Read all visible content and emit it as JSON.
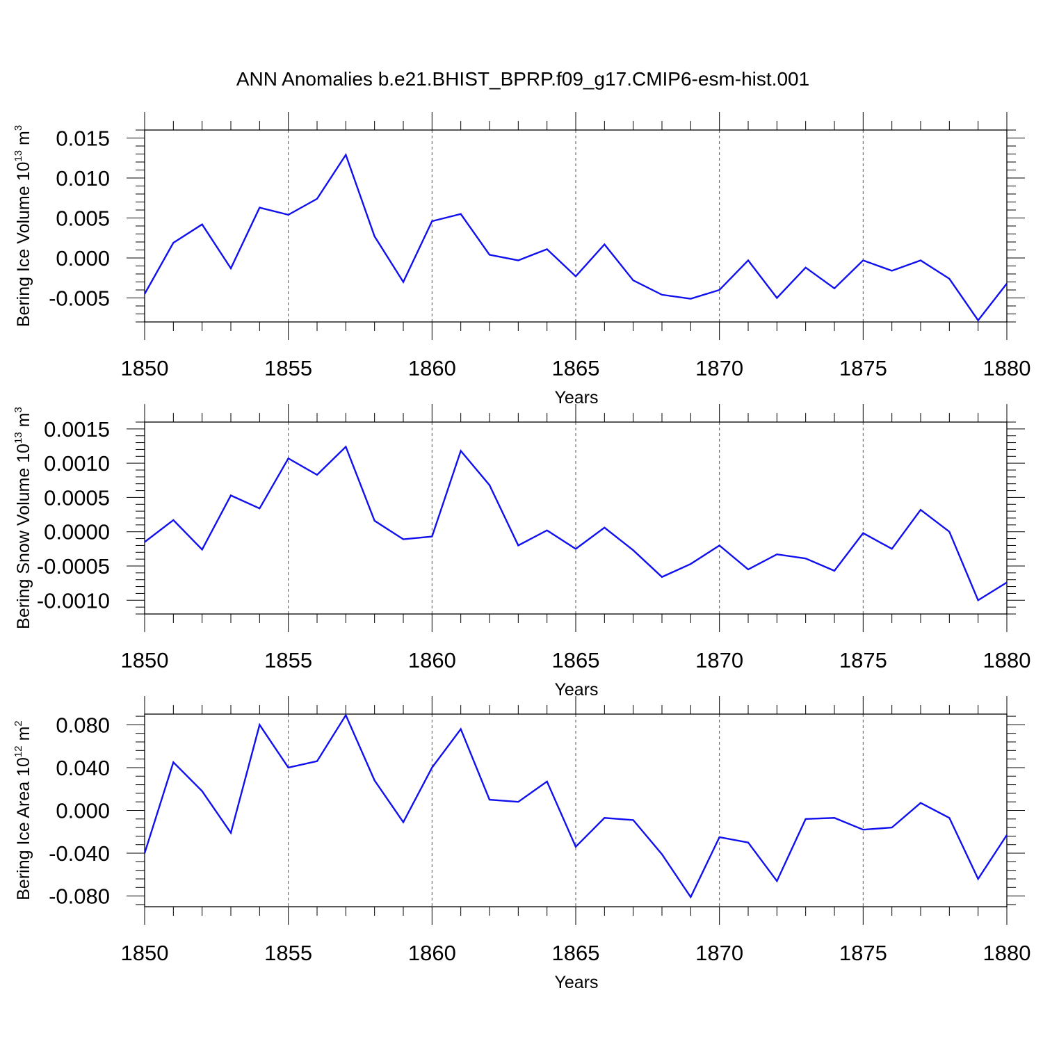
{
  "title": "ANN Anomalies b.e21.BHIST_BPRP.f09_g17.CMIP6-esm-hist.001",
  "colors": {
    "line": "#1010ee",
    "axis": "#000000",
    "grid": "#555555"
  },
  "chart_data": [
    {
      "type": "line",
      "ylabel_text": "Bering Ice Volume 10",
      "ylabel_exp": "13",
      "ylabel_unit": " m",
      "ylabel_unit_exp": "3",
      "xlabel": "Years",
      "xlim": [
        1850,
        1880
      ],
      "ylim": [
        -0.008,
        0.016
      ],
      "yticks": [
        -0.005,
        0.0,
        0.005,
        0.01,
        0.015
      ],
      "ytick_labels": [
        "-0.005",
        "0.000",
        "0.005",
        "0.010",
        "0.015"
      ],
      "xticks": [
        1850,
        1855,
        1860,
        1865,
        1870,
        1875,
        1880
      ],
      "xtick_labels": [
        "1850",
        "1855",
        "1860",
        "1865",
        "1870",
        "1875",
        "1880"
      ],
      "x": [
        1850,
        1851,
        1852,
        1853,
        1854,
        1855,
        1856,
        1857,
        1858,
        1859,
        1860,
        1861,
        1862,
        1863,
        1864,
        1865,
        1866,
        1867,
        1868,
        1869,
        1870,
        1871,
        1872,
        1873,
        1874,
        1875,
        1876,
        1877,
        1878,
        1879,
        1880
      ],
      "values": [
        -0.0045,
        0.0019,
        0.0042,
        -0.0013,
        0.0063,
        0.0054,
        0.0074,
        0.0129,
        0.0027,
        -0.003,
        0.0046,
        0.0055,
        0.0004,
        -0.0003,
        0.0011,
        -0.0023,
        0.0017,
        -0.0028,
        -0.0046,
        -0.0051,
        -0.004,
        -0.0003,
        -0.005,
        -0.0012,
        -0.0038,
        -0.0003,
        -0.0016,
        -0.0003,
        -0.0026,
        -0.0078,
        -0.0032
      ]
    },
    {
      "type": "line",
      "ylabel_text": "Bering Snow Volume 10",
      "ylabel_exp": "13",
      "ylabel_unit": " m",
      "ylabel_unit_exp": "3",
      "xlabel": "Years",
      "xlim": [
        1850,
        1880
      ],
      "ylim": [
        -0.0012,
        0.0016
      ],
      "yticks": [
        -0.001,
        -0.0005,
        0.0,
        0.0005,
        0.001,
        0.0015
      ],
      "ytick_labels": [
        "-0.0010",
        "-0.0005",
        "0.0000",
        "0.0005",
        "0.0010",
        "0.0015"
      ],
      "xticks": [
        1850,
        1855,
        1860,
        1865,
        1870,
        1875,
        1880
      ],
      "xtick_labels": [
        "1850",
        "1855",
        "1860",
        "1865",
        "1870",
        "1875",
        "1880"
      ],
      "x": [
        1850,
        1851,
        1852,
        1853,
        1854,
        1855,
        1856,
        1857,
        1858,
        1859,
        1860,
        1861,
        1862,
        1863,
        1864,
        1865,
        1866,
        1867,
        1868,
        1869,
        1870,
        1871,
        1872,
        1873,
        1874,
        1875,
        1876,
        1877,
        1878,
        1879,
        1880
      ],
      "values": [
        -0.00015,
        0.00017,
        -0.00026,
        0.00053,
        0.00034,
        0.00107,
        0.00083,
        0.00124,
        0.00016,
        -0.00011,
        -7e-05,
        0.00118,
        0.00068,
        -0.0002,
        2e-05,
        -0.00025,
        6e-05,
        -0.00027,
        -0.00066,
        -0.00047,
        -0.0002,
        -0.00055,
        -0.00033,
        -0.00039,
        -0.00057,
        -2e-05,
        -0.00025,
        0.00032,
        0.0,
        -0.001,
        -0.00074
      ]
    },
    {
      "type": "line",
      "ylabel_text": "Bering Ice Area 10",
      "ylabel_exp": "12",
      "ylabel_unit": " m",
      "ylabel_unit_exp": "2",
      "xlabel": "Years",
      "xlim": [
        1850,
        1880
      ],
      "ylim": [
        -0.09,
        0.09
      ],
      "yticks": [
        -0.08,
        -0.04,
        0.0,
        0.04,
        0.08
      ],
      "ytick_labels": [
        "-0.080",
        "-0.040",
        "0.000",
        "0.040",
        "0.080"
      ],
      "xticks": [
        1850,
        1855,
        1860,
        1865,
        1870,
        1875,
        1880
      ],
      "xtick_labels": [
        "1850",
        "1855",
        "1860",
        "1865",
        "1870",
        "1875",
        "1880"
      ],
      "x": [
        1850,
        1851,
        1852,
        1853,
        1854,
        1855,
        1856,
        1857,
        1858,
        1859,
        1860,
        1861,
        1862,
        1863,
        1864,
        1865,
        1866,
        1867,
        1868,
        1869,
        1870,
        1871,
        1872,
        1873,
        1874,
        1875,
        1876,
        1877,
        1878,
        1879,
        1880
      ],
      "values": [
        -0.04,
        0.045,
        0.018,
        -0.021,
        0.08,
        0.04,
        0.046,
        0.089,
        0.028,
        -0.011,
        0.04,
        0.076,
        0.01,
        0.008,
        0.027,
        -0.034,
        -0.007,
        -0.009,
        -0.041,
        -0.081,
        -0.025,
        -0.03,
        -0.066,
        -0.008,
        -0.007,
        -0.018,
        -0.016,
        0.007,
        -0.007,
        -0.064,
        -0.023
      ]
    }
  ]
}
